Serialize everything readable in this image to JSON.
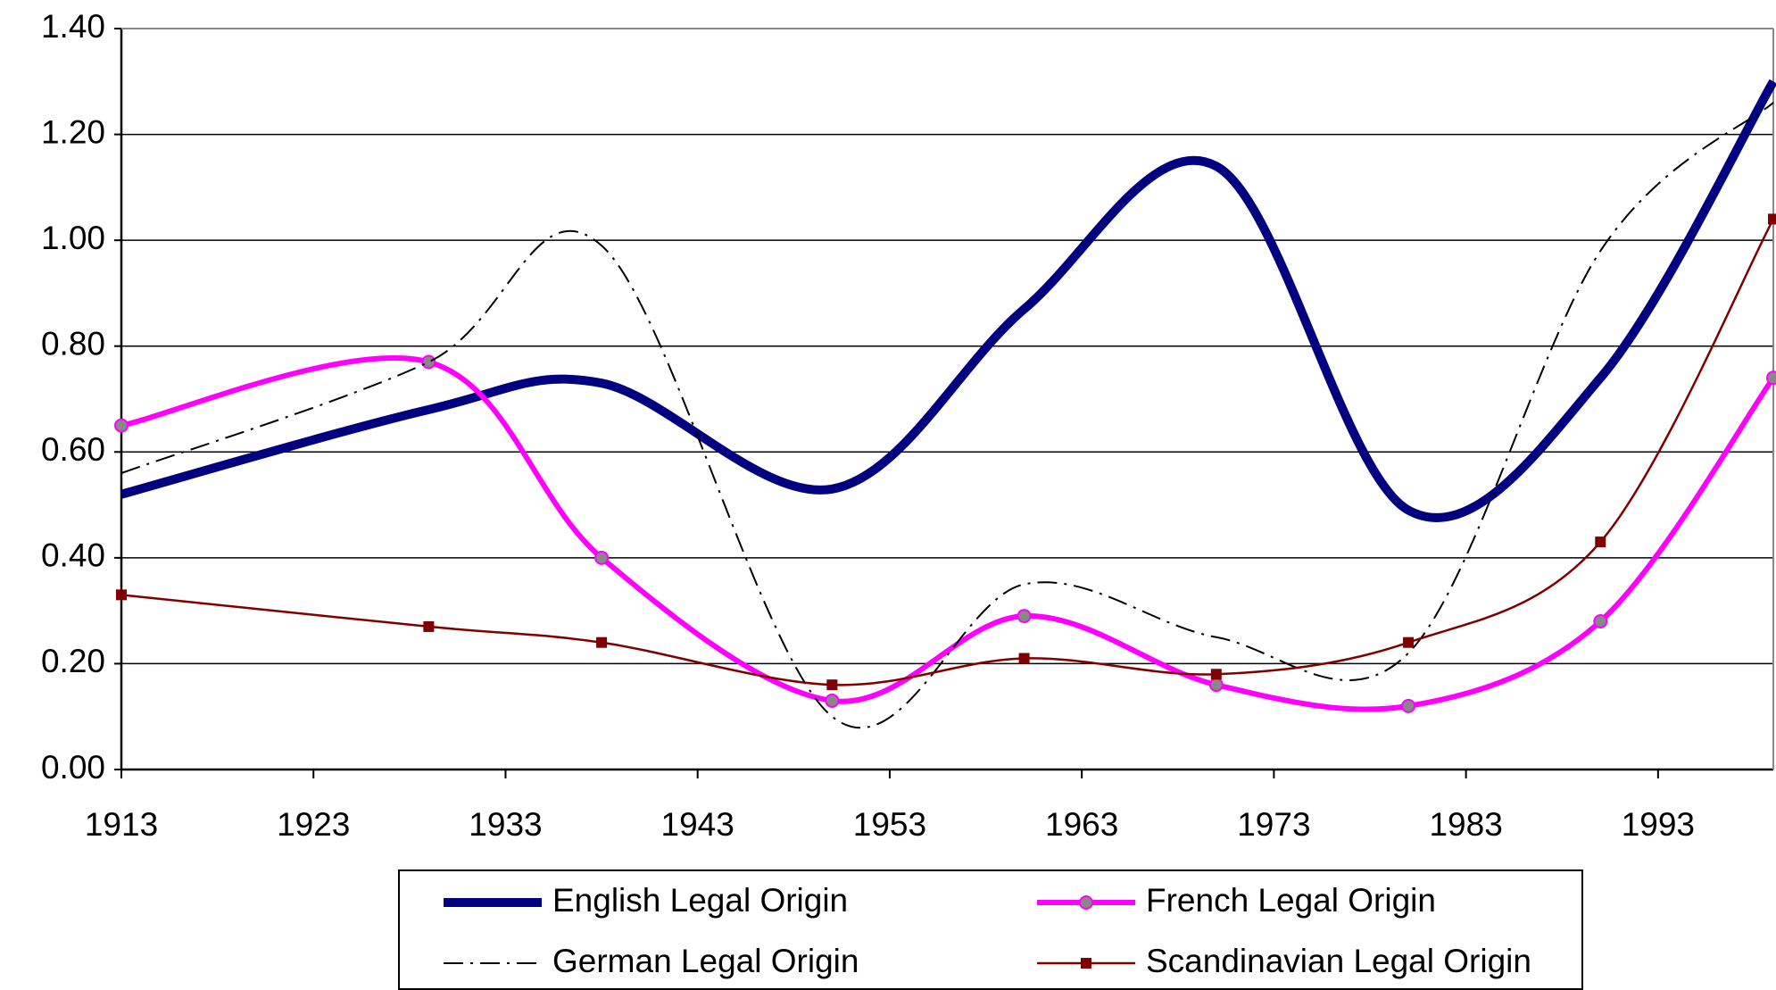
{
  "chart_data": {
    "type": "line",
    "x": [
      1913,
      1929,
      1938,
      1950,
      1960,
      1970,
      1980,
      1990,
      1999
    ],
    "series": [
      {
        "name": "English Legal Origin",
        "color": "#000080",
        "line_style": "solid",
        "line_width": 10,
        "marker": "none",
        "smooth": true,
        "values": [
          0.52,
          0.68,
          0.73,
          0.53,
          0.87,
          1.14,
          0.49,
          0.74,
          1.3
        ]
      },
      {
        "name": "French Legal Origin",
        "color": "#ff00ff",
        "line_style": "solid",
        "line_width": 6,
        "marker": "circle",
        "smooth": true,
        "values": [
          0.65,
          0.77,
          0.4,
          0.13,
          0.29,
          0.16,
          0.12,
          0.28,
          0.74
        ]
      },
      {
        "name": "German Legal Origin",
        "color": "#000000",
        "line_style": "dash-dot",
        "line_width": 2,
        "marker": "none",
        "smooth": true,
        "values": [
          0.56,
          0.77,
          0.99,
          0.1,
          0.35,
          0.25,
          0.22,
          0.98,
          1.26
        ]
      },
      {
        "name": "Scandinavian Legal Origin",
        "color": "#800000",
        "line_style": "solid",
        "line_width": 2.5,
        "marker": "square",
        "smooth": true,
        "values": [
          0.33,
          0.27,
          0.24,
          0.16,
          0.21,
          0.18,
          0.24,
          0.43,
          1.04
        ]
      }
    ],
    "xlim": [
      1913,
      1999
    ],
    "xticks": [
      1913,
      1923,
      1933,
      1943,
      1953,
      1963,
      1973,
      1983,
      1993
    ],
    "ylim": [
      0,
      1.4
    ],
    "yticks": [
      {
        "value": 0,
        "label": "0.00"
      },
      {
        "value": 0.2,
        "label": "0.20"
      },
      {
        "value": 0.4,
        "label": "0.40"
      },
      {
        "value": 0.6,
        "label": "0.60"
      },
      {
        "value": 0.8,
        "label": "0.80"
      },
      {
        "value": 1.0,
        "label": "1.00"
      },
      {
        "value": 1.2,
        "label": "1.20"
      },
      {
        "value": 1.4,
        "label": "1.40"
      }
    ],
    "grid": true,
    "legend": "bottom"
  }
}
